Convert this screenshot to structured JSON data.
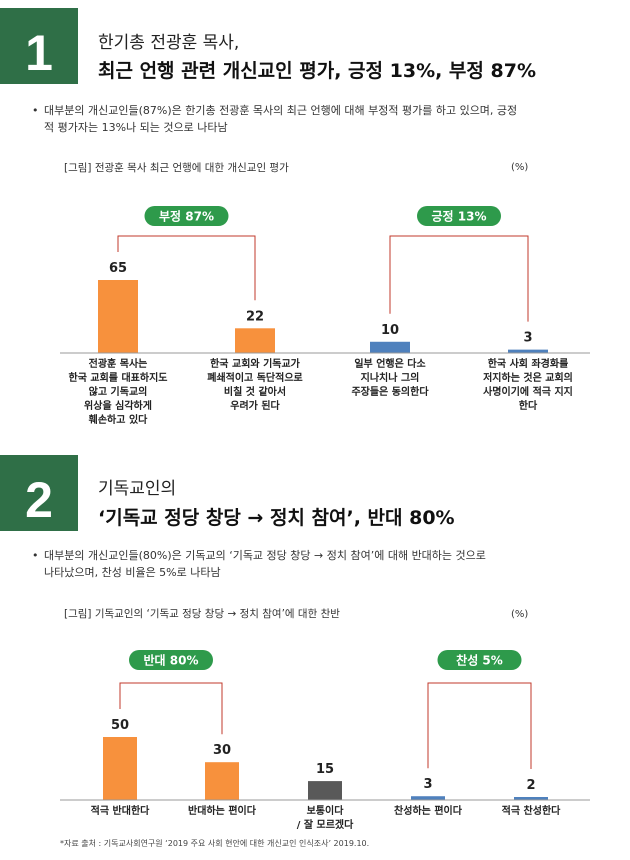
{
  "section1": {
    "number": "1",
    "subtitle": "한기총 전광훈 목사,",
    "title": "최근 언행 관련 개신교인 평가, 긍정 13%, 부정 87%",
    "bullet_line1": "대부분의 개신교인들(87%)은 한기총 전광훈 목사의 최근 언행에 대해 부정적 평가를 하고 있으며, 긍정",
    "bullet_line2": "적 평가자는 13%나 되는 것으로 나타남",
    "figure_caption": "[그림] 전광훈 목사 최근 언행에 대한 개신교인 평가",
    "unit": "(%)",
    "groups": [
      {
        "label": "부정 87%",
        "color": "#2e9a4b"
      },
      {
        "label": "긍정 13%",
        "color": "#2e9a4b"
      }
    ],
    "chart_data": {
      "type": "bar",
      "title": "[그림] 전광훈 목사 최근 언행에 대한 개신교인 평가",
      "unit": "(%)",
      "categories": [
        "전광훈 목사는 한국 교회를 대표하지도 않고 기독교의 위상을 심각하게 훼손하고 있다",
        "한국 교회와 기독교가 폐쇄적이고 독단적으로 비칠 것 같아서 우려가 된다",
        "일부 언행은 다소 지나치나 그의 주장들은 동의한다",
        "한국 사회 좌경화를 저지하는 것은 교회의 사명이기에 적극 지지한다"
      ],
      "values": [
        65,
        22,
        10,
        3
      ],
      "colors": [
        "#f7913d",
        "#f7913d",
        "#4f81bd",
        "#4f81bd"
      ]
    },
    "category_lines": [
      [
        "전광훈 목사는",
        "한국 교회를 대표하지도",
        "않고 기독교의",
        "위상을 심각하게",
        "훼손하고 있다"
      ],
      [
        "한국 교회와 기독교가",
        "폐쇄적이고 독단적으로",
        "비칠 것 같아서",
        "우려가 된다"
      ],
      [
        "일부 언행은 다소",
        "지나치나 그의",
        "주장들은 동의한다"
      ],
      [
        "한국 사회 좌경화를",
        "저지하는 것은 교회의",
        "사명이기에 적극 지지",
        "한다"
      ]
    ]
  },
  "section2": {
    "number": "2",
    "subtitle": "기독교인의",
    "title": "‘기독교 정당 창당 → 정치 참여’, 반대 80%",
    "bullet_line1": "대부분의 개신교인들(80%)은 기독교의 ‘기독교 정당 창당 → 정치 참여’에 대해 반대하는 것으로",
    "bullet_line2": "나타났으며, 찬성 비율은 5%로 나타남",
    "figure_caption": "[그림] 기독교인의 ‘기독교 정당 창당 → 정치 참여’에 대한 찬반",
    "unit": "(%)",
    "groups": [
      {
        "label": "반대 80%",
        "color": "#2e9a4b"
      },
      {
        "label": "찬성 5%",
        "color": "#2e9a4b"
      }
    ],
    "chart_data": {
      "type": "bar",
      "title": "[그림] 기독교인의 ‘기독교 정당 창당 → 정치 참여’에 대한 찬반",
      "unit": "(%)",
      "categories": [
        "적극 반대한다",
        "반대하는 편이다",
        "보통이다 / 잘 모르겠다",
        "찬성하는 편이다",
        "적극 찬성한다"
      ],
      "values": [
        50,
        30,
        15,
        3,
        2
      ],
      "colors": [
        "#f7913d",
        "#f7913d",
        "#595959",
        "#4f81bd",
        "#4f81bd"
      ]
    },
    "category_lines": [
      [
        "적극 반대한다"
      ],
      [
        "반대하는 편이다"
      ],
      [
        "보통이다",
        "/ 잘 모르겠다"
      ],
      [
        "찬성하는 편이다"
      ],
      [
        "적극 찬성한다"
      ]
    ]
  },
  "source": "*자료 출처 : 기독교사회연구원 ‘2019 주요 사회 현안에 대한 개신교인 인식조사’ 2019.10."
}
